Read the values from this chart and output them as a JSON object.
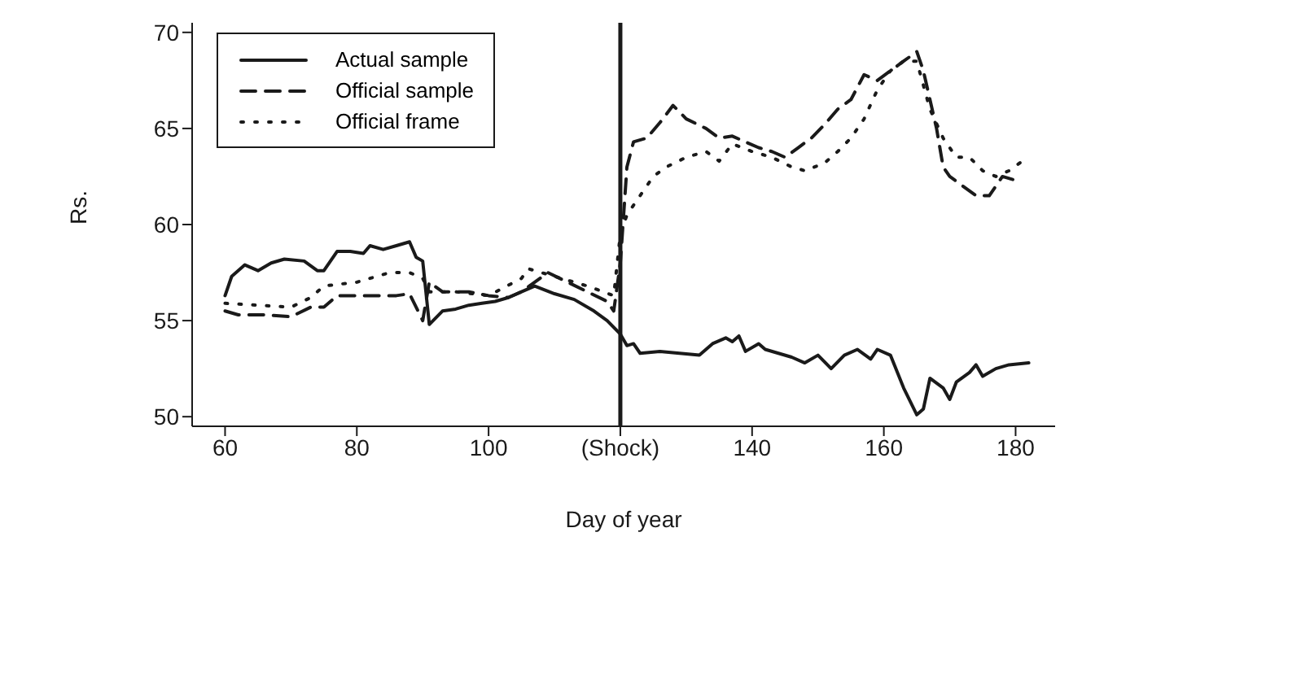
{
  "chart_data": {
    "type": "line",
    "xlabel": "Day of year",
    "ylabel": "Rs.",
    "xlim": [
      55,
      186
    ],
    "ylim": [
      49.5,
      70.5
    ],
    "xticks": [
      60,
      80,
      100,
      {
        "value": 120,
        "label": "(Shock)"
      },
      140,
      160,
      180
    ],
    "yticks": [
      50,
      55,
      60,
      65,
      70
    ],
    "grid": false,
    "legend": "top left",
    "marker": "none",
    "ref_lines": [
      {
        "axis": "x",
        "value": 120,
        "label": null,
        "color": "#1a1a1a"
      }
    ],
    "series": [
      {
        "name": "Actual sample",
        "color": "#1a1a1a",
        "line_style": "solid",
        "x": [
          60,
          61,
          63,
          65,
          67,
          69,
          72,
          74,
          75,
          77,
          79,
          81,
          82,
          84,
          86,
          88,
          89,
          90,
          91,
          93,
          95,
          97,
          99,
          101,
          103,
          105,
          107,
          110,
          113,
          116,
          118,
          120,
          121,
          122,
          123,
          126,
          129,
          132,
          134,
          136,
          137,
          138,
          139,
          141,
          142,
          144,
          146,
          148,
          150,
          152,
          154,
          156,
          158,
          159,
          161,
          163,
          165,
          166,
          167,
          169,
          170,
          171,
          173,
          174,
          175,
          177,
          179,
          182
        ],
        "values": [
          56.3,
          57.3,
          57.9,
          57.6,
          58.0,
          58.2,
          58.1,
          57.6,
          57.6,
          58.6,
          58.6,
          58.5,
          58.9,
          58.7,
          58.9,
          59.1,
          58.3,
          58.1,
          54.8,
          55.5,
          55.6,
          55.8,
          55.9,
          56.0,
          56.2,
          56.5,
          56.8,
          56.4,
          56.1,
          55.5,
          55.0,
          54.3,
          53.7,
          53.8,
          53.3,
          53.4,
          53.3,
          53.2,
          53.8,
          54.1,
          53.9,
          54.2,
          53.4,
          53.8,
          53.5,
          53.3,
          53.1,
          52.8,
          53.2,
          52.5,
          53.2,
          53.5,
          53.0,
          53.5,
          53.2,
          51.5,
          50.1,
          50.4,
          52.0,
          51.5,
          50.9,
          51.8,
          52.3,
          52.7,
          52.1,
          52.5,
          52.7,
          52.8
        ]
      },
      {
        "name": "Official sample",
        "color": "#1a1a1a",
        "line_style": "dashed",
        "x": [
          60,
          62,
          66,
          70,
          73,
          75,
          77,
          82,
          86,
          88,
          90,
          91,
          93,
          97,
          100,
          103,
          105,
          107,
          109,
          112,
          115,
          118,
          119,
          120,
          121,
          122,
          124,
          126,
          128,
          130,
          133,
          135,
          137,
          139,
          141,
          143,
          145,
          147,
          149,
          151,
          153,
          155,
          157,
          159,
          161,
          163,
          165,
          166,
          168,
          169,
          170,
          172,
          174,
          176,
          178,
          180
        ],
        "values": [
          55.5,
          55.3,
          55.3,
          55.2,
          55.7,
          55.7,
          56.3,
          56.3,
          56.3,
          56.4,
          55.0,
          57.0,
          56.5,
          56.5,
          56.3,
          56.2,
          56.5,
          57.0,
          57.5,
          57.0,
          56.5,
          56.0,
          55.5,
          58.0,
          63.0,
          64.3,
          64.5,
          65.3,
          66.2,
          65.5,
          65.0,
          64.5,
          64.6,
          64.3,
          64.0,
          63.8,
          63.5,
          64.0,
          64.5,
          65.2,
          66.0,
          66.5,
          67.8,
          67.5,
          68.0,
          68.5,
          69.0,
          68.0,
          65.0,
          63.0,
          62.5,
          62.0,
          61.5,
          61.5,
          62.5,
          62.3
        ]
      },
      {
        "name": "Official frame",
        "color": "#1a1a1a",
        "line_style": "dotted",
        "x": [
          60,
          65,
          70,
          73,
          75,
          80,
          85,
          88,
          90,
          91,
          95,
          100,
          105,
          106,
          110,
          115,
          119,
          120,
          121,
          123,
          125,
          127,
          130,
          133,
          135,
          137,
          140,
          143,
          146,
          148,
          151,
          153,
          155,
          157,
          159,
          161,
          163,
          165,
          167,
          169,
          171,
          173,
          175,
          177,
          179,
          181
        ],
        "values": [
          55.9,
          55.8,
          55.7,
          56.2,
          56.8,
          57.0,
          57.5,
          57.5,
          57.2,
          56.5,
          56.5,
          56.3,
          57.2,
          57.7,
          57.3,
          56.8,
          56.3,
          59.5,
          60.5,
          61.5,
          62.5,
          63.0,
          63.5,
          63.8,
          63.3,
          64.2,
          63.8,
          63.5,
          63.0,
          62.8,
          63.2,
          63.8,
          64.5,
          65.5,
          67.0,
          68.0,
          68.5,
          68.5,
          66.0,
          64.5,
          63.5,
          63.5,
          62.8,
          62.5,
          62.8,
          63.3
        ]
      }
    ]
  }
}
